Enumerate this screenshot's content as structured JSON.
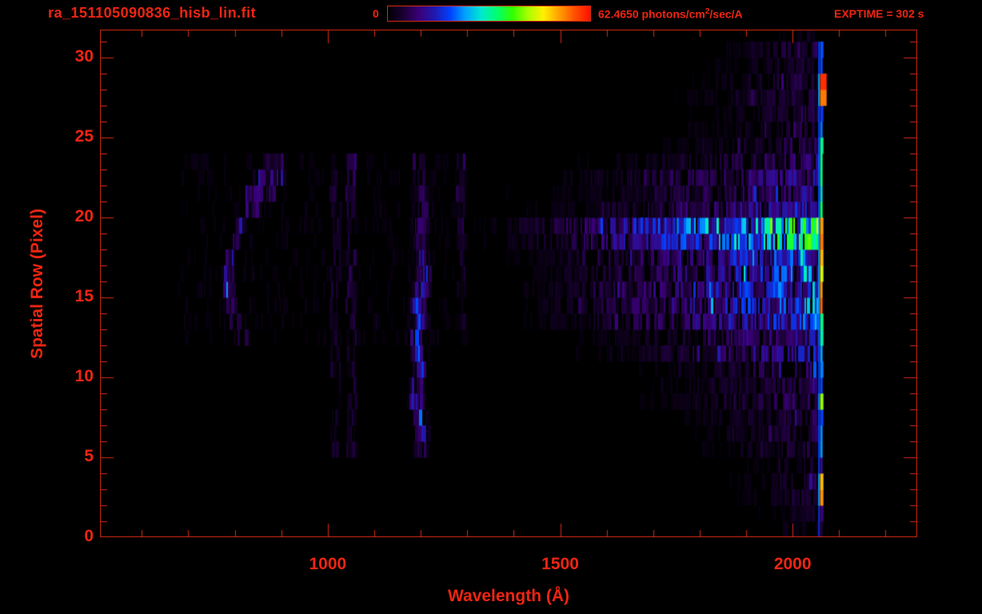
{
  "header": {
    "filename": "ra_151105090836_hisb_lin.fit",
    "colorbar_min_label": "0",
    "colorbar_max_value": "62.4650",
    "colorbar_units_pre": " photons/cm",
    "colorbar_units_sup": "2",
    "colorbar_units_post": "/sec/A",
    "exptime_label": "EXPTIME = 302 s"
  },
  "colors": {
    "accent_text": "#ee2512",
    "accent_line": "#d42a10",
    "background": "#000000",
    "colorbar_stops": [
      "#000002",
      "#1a0033",
      "#3a0078",
      "#2019b0",
      "#0040ff",
      "#00a4ff",
      "#00e8d0",
      "#00ff70",
      "#30ff00",
      "#a8ff00",
      "#fff000",
      "#ffa000",
      "#ff5000",
      "#ff1000"
    ]
  },
  "chart_data": {
    "type": "heatmap",
    "title": "ra_151105090836_hisb_lin.fit",
    "xlabel": "Wavelength (Å)",
    "ylabel": "Spatial Row (Pixel)",
    "xlim": [
      510,
      2268
    ],
    "ylim": [
      0,
      31.75
    ],
    "x_major_ticks": [
      1000,
      1500,
      2000
    ],
    "x_minor_step": 100,
    "x_minor_range": [
      600,
      2200
    ],
    "y_major_ticks": [
      0,
      5,
      10,
      15,
      20,
      25,
      30
    ],
    "y_minor_step": 1,
    "colorbar": {
      "min": 0,
      "max": 62.465,
      "units": "photons/cm2/sec/A"
    },
    "exposure_time_s": 302,
    "features": {
      "comment": "32 spatial row bands (index 0 = bottom). Intensities are fractions of the colorbar max (62.465 photons/cm2/sec/A).",
      "row_peak_intensity": [
        0.04,
        0.05,
        0.08,
        0.08,
        0.06,
        0.09,
        0.09,
        0.1,
        0.12,
        0.11,
        0.13,
        0.2,
        0.18,
        0.28,
        0.3,
        0.32,
        0.28,
        0.3,
        0.5,
        0.55,
        0.22,
        0.16,
        0.17,
        0.13,
        0.1,
        0.09,
        0.09,
        0.1,
        0.09,
        0.07,
        0.1,
        0.04
      ],
      "row_onset_wavelength": [
        1900,
        1850,
        1800,
        1780,
        1800,
        1700,
        1680,
        1650,
        1560,
        1580,
        1540,
        1440,
        1400,
        1310,
        1300,
        1290,
        1300,
        1290,
        1265,
        1250,
        1300,
        1280,
        1300,
        1360,
        1600,
        1650,
        1680,
        1640,
        1660,
        1700,
        1750,
        1900
      ],
      "continuum_end_wavelength": 2052,
      "edge_line": {
        "wl1": 2055,
        "wl2": 2066,
        "intensity": [
          0.1,
          0.15,
          0.85,
          0.9,
          0.2,
          0.4,
          0.35,
          0.3,
          0.75,
          0.3,
          0.35,
          0.4,
          0.5,
          0.55,
          0.9,
          0.85,
          0.8,
          0.85,
          0.92,
          0.9,
          0.55,
          0.45,
          0.5,
          0.55,
          0.5,
          0.35,
          0.3,
          0.9,
          0.95,
          0.3,
          0.35,
          0.05
        ],
        "wide_rows": [
          27,
          28
        ]
      },
      "lyman_alpha": {
        "center_wavelength": 1202,
        "sigma": 9,
        "intensity": [
          0,
          0,
          0,
          0,
          0,
          0.12,
          0.18,
          0.2,
          0.22,
          0.2,
          0.22,
          0.25,
          0.22,
          0.25,
          0.2,
          0.18,
          0.2,
          0.15,
          0.15,
          0.12,
          0.12,
          0.1,
          0.12,
          0.1,
          0,
          0,
          0,
          0,
          0,
          0,
          0,
          0
        ]
      },
      "blob_segments": [
        {
          "row": 12,
          "wl1": 795,
          "wl2": 830,
          "i": 0.06
        },
        {
          "row": 13,
          "wl1": 785,
          "wl2": 815,
          "i": 0.08
        },
        {
          "row": 14,
          "wl1": 780,
          "wl2": 805,
          "i": 0.1
        },
        {
          "row": 15,
          "wl1": 778,
          "wl2": 800,
          "i": 0.12
        },
        {
          "row": 16,
          "wl1": 780,
          "wl2": 798,
          "i": 0.11
        },
        {
          "row": 17,
          "wl1": 782,
          "wl2": 800,
          "i": 0.1
        },
        {
          "row": 18,
          "wl1": 788,
          "wl2": 812,
          "i": 0.09
        },
        {
          "row": 19,
          "wl1": 795,
          "wl2": 822,
          "i": 0.1
        },
        {
          "row": 20,
          "wl1": 808,
          "wl2": 860,
          "i": 0.09
        },
        {
          "row": 21,
          "wl1": 820,
          "wl2": 895,
          "i": 0.11
        },
        {
          "row": 22,
          "wl1": 838,
          "wl2": 908,
          "i": 0.1
        },
        {
          "row": 23,
          "wl1": 862,
          "wl2": 905,
          "i": 0.07
        }
      ],
      "faint_columns": [
        {
          "wl1": 1040,
          "wl2": 1062,
          "i": 0.05,
          "row1": 5,
          "row2": 23
        },
        {
          "wl1": 1278,
          "wl2": 1296,
          "i": 0.05,
          "row1": 13,
          "row2": 23
        },
        {
          "wl1": 1006,
          "wl2": 1028,
          "i": 0.04,
          "row1": 5,
          "row2": 22
        }
      ],
      "wash": {
        "row1": 12,
        "row2": 23,
        "wl1": 680,
        "wl2": 1300,
        "i": 0.025
      }
    }
  }
}
